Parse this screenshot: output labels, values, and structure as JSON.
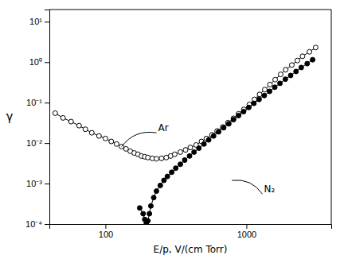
{
  "chart_data": {
    "type": "line",
    "log": true,
    "xlabel": "E/p, V/(cm Torr)",
    "ylabel": "γ",
    "xlim": [
      40,
      4000
    ],
    "ylim": [
      0.0001,
      20
    ],
    "xticks": [
      100,
      1000
    ],
    "yticks": [
      {
        "value": 0.0001,
        "label": "10⁻⁴"
      },
      {
        "value": 0.001,
        "label": "10⁻³"
      },
      {
        "value": 0.01,
        "label": "10⁻²"
      },
      {
        "value": 0.1,
        "label": "10⁻¹"
      },
      {
        "value": 1,
        "label": "10⁰"
      },
      {
        "value": 10,
        "label": "10¹"
      }
    ],
    "grid": false,
    "series": [
      {
        "color": "#000000",
        "marker": "open-circle",
        "line_style": "solid",
        "x": [
          44,
          50,
          57,
          65,
          72,
          80,
          90,
          100,
          110,
          120,
          130,
          140,
          150,
          160,
          170,
          180,
          190,
          200,
          215,
          230,
          250,
          270,
          290,
          310,
          340,
          370,
          400,
          440,
          480,
          520,
          570,
          620,
          680,
          740,
          810,
          880,
          960,
          1050,
          1140,
          1240,
          1350,
          1470,
          1600,
          1750,
          1900,
          2100,
          2300,
          2500,
          2800,
          3100
        ],
        "values": [
          0.055,
          0.042,
          0.034,
          0.027,
          0.022,
          0.018,
          0.015,
          0.013,
          0.011,
          0.0095,
          0.0082,
          0.0072,
          0.0063,
          0.0057,
          0.0053,
          0.0048,
          0.0046,
          0.0044,
          0.0042,
          0.0041,
          0.0042,
          0.0044,
          0.0048,
          0.0053,
          0.006,
          0.0068,
          0.0078,
          0.009,
          0.011,
          0.013,
          0.016,
          0.02,
          0.025,
          0.032,
          0.041,
          0.053,
          0.068,
          0.09,
          0.12,
          0.16,
          0.21,
          0.28,
          0.37,
          0.5,
          0.65,
          0.85,
          1.1,
          1.4,
          1.8,
          2.3
        ]
      },
      {
        "color": "#000000",
        "marker": "circle",
        "line_style": "solid",
        "x": [
          175,
          185,
          190,
          195,
          200,
          205,
          210,
          220,
          230,
          245,
          260,
          275,
          295,
          315,
          340,
          365,
          395,
          425,
          460,
          500,
          540,
          585,
          635,
          690,
          750,
          810,
          880,
          955,
          1040,
          1130,
          1230,
          1340,
          1460,
          1590,
          1730,
          1890,
          2060,
          2250,
          2450,
          2700,
          2950
        ],
        "values": [
          0.00025,
          0.00018,
          0.00013,
          0.000105,
          0.00012,
          0.00018,
          0.00028,
          0.00045,
          0.00065,
          0.0009,
          0.0012,
          0.0015,
          0.0019,
          0.0024,
          0.003,
          0.0038,
          0.0048,
          0.006,
          0.0075,
          0.0095,
          0.012,
          0.015,
          0.019,
          0.024,
          0.03,
          0.038,
          0.048,
          0.06,
          0.076,
          0.096,
          0.12,
          0.15,
          0.19,
          0.24,
          0.3,
          0.38,
          0.47,
          0.59,
          0.74,
          0.92,
          1.15
        ]
      }
    ],
    "annotations": [
      {
        "text": "Ar",
        "x": 230,
        "y": 0.018,
        "point_x": 130,
        "point_y": 0.0082
      },
      {
        "text": "N₂",
        "x": 1300,
        "y": 0.00055,
        "point_x": 790,
        "point_y": 0.0012
      }
    ]
  }
}
